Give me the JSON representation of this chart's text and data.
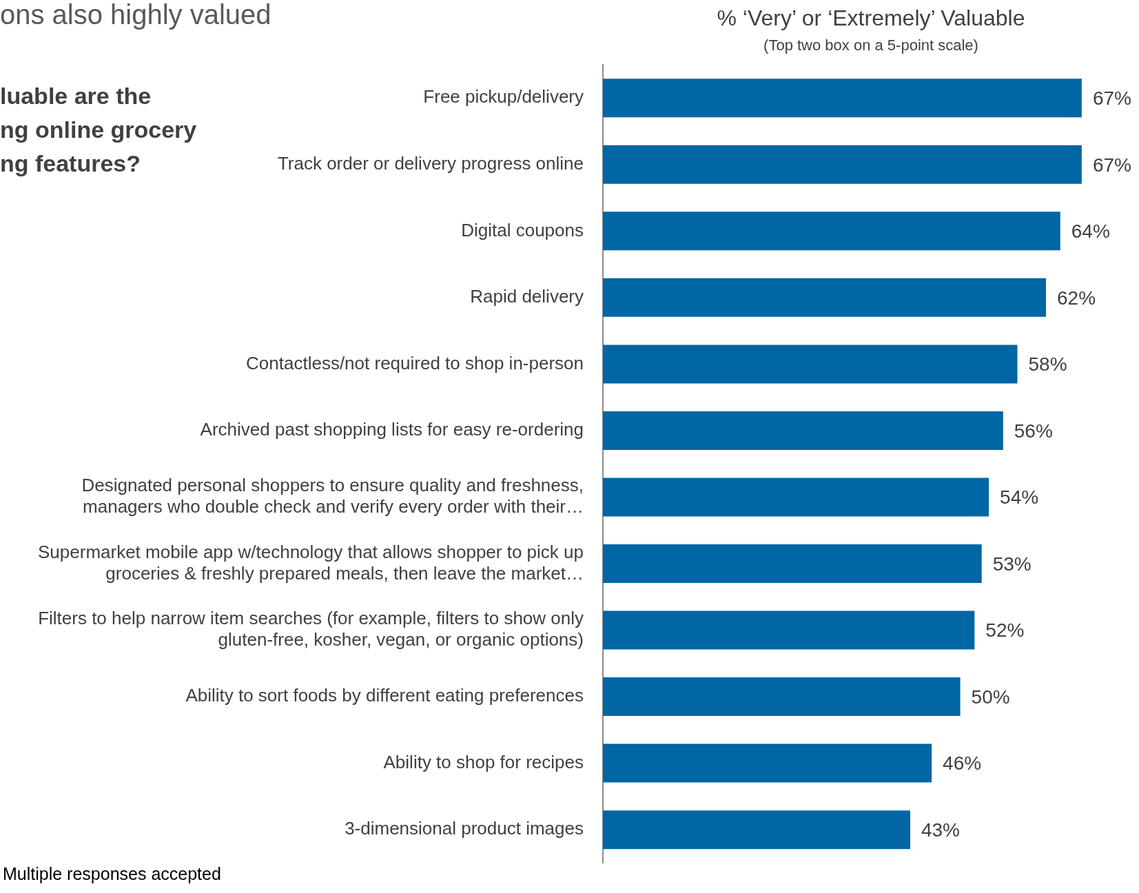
{
  "chart_data": {
    "type": "bar",
    "orientation": "horizontal",
    "title": "% ‘Very’ or ‘Extremely’ Valuable",
    "subtitle": "(Top two box on a 5-point scale)",
    "categories": [
      "Free pickup/delivery",
      "Track order or delivery progress online",
      "Digital coupons",
      "Rapid delivery",
      "Contactless/not required to shop in-person",
      "Archived past shopping lists for easy re-ordering",
      "Designated personal shoppers to ensure quality and freshness, managers who double check and verify every order with their…",
      "Supermarket mobile app w/technology that allows shopper to pick up groceries & freshly prepared meals, then leave the market…",
      "Filters to help narrow item searches (for example, filters to show only gluten-free, kosher, vegan, or organic options)",
      "Ability to sort foods by different eating preferences",
      "Ability to shop for recipes",
      "3-dimensional product images"
    ],
    "values": [
      67,
      67,
      64,
      62,
      58,
      56,
      54,
      53,
      52,
      50,
      46,
      43
    ],
    "value_labels": [
      "67%",
      "67%",
      "64%",
      "62%",
      "58%",
      "56%",
      "54%",
      "53%",
      "52%",
      "50%",
      "46%",
      "43%"
    ],
    "color": "#0066a4",
    "tick_labels": "y",
    "grid": false,
    "legend": false,
    "annotations": [
      "ons also highly valued",
      "luable are the",
      "ng online grocery",
      "ng features?",
      "Multiple responses accepted"
    ]
  }
}
